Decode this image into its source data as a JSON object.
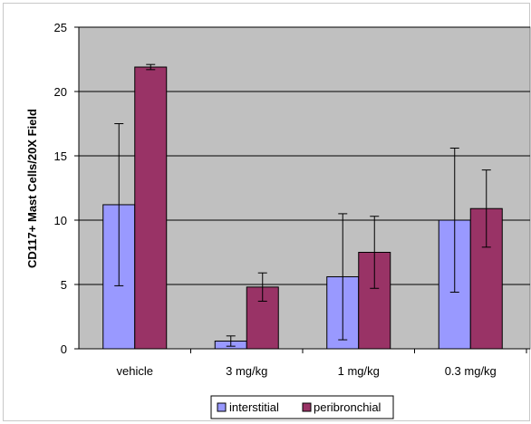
{
  "chart_data": {
    "type": "bar",
    "title": "",
    "xlabel": "",
    "ylabel": "CD117+ Mast Cells/20X Field",
    "categories": [
      "vehicle",
      "3 mg/kg",
      "1 mg/kg",
      "0.3 mg/kg"
    ],
    "ylim": [
      0,
      25
    ],
    "yticks": [
      0,
      5,
      10,
      15,
      20,
      25
    ],
    "grid": true,
    "legend_position": "bottom",
    "series": [
      {
        "name": "interstitial",
        "color": "#9999ff",
        "values": [
          11.2,
          0.6,
          5.6,
          10.0
        ],
        "error": [
          6.3,
          0.4,
          4.9,
          5.6
        ]
      },
      {
        "name": "peribronchial",
        "color": "#993366",
        "values": [
          21.9,
          4.8,
          7.5,
          10.9
        ],
        "error": [
          0.2,
          1.1,
          2.8,
          3.0
        ]
      }
    ],
    "plot_background": "#c0c0c0"
  }
}
